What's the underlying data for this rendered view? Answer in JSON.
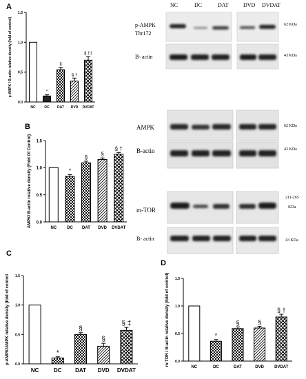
{
  "panels": {
    "a": "A",
    "b": "B",
    "c": "C",
    "d": "D"
  },
  "blots": {
    "lanes": [
      "NC",
      "DC",
      "DAT",
      "DVD",
      "DVDAT"
    ],
    "p_ampk_label": "p-AMPK",
    "thr_label": "Thr172",
    "beta_actin_label_1": "B- actin",
    "ampk_label": "AMPK",
    "beta_actin_label_2": "B-actin",
    "mtor_label": "m-TOR",
    "beta_actin_label_3": "B- actin",
    "kda_62_a": "62 KDa",
    "kda_43_a": "43 KDa",
    "kda_62_b": "62 KDa",
    "kda_43_b": "43 KDa",
    "kda_mtor_1": "211-265",
    "kda_mtor_2": "KDa",
    "kda_43_c": "43 KDa"
  },
  "chart_data": [
    {
      "id": "A",
      "type": "bar",
      "categories": [
        "NC",
        "DC",
        "DAT",
        "DVD",
        "DVDAT"
      ],
      "values": [
        1.0,
        0.1,
        0.54,
        0.35,
        0.7
      ],
      "errors": [
        0.0,
        0.02,
        0.04,
        0.05,
        0.06
      ],
      "annotations": [
        "",
        "*",
        "§",
        "§ †",
        "§ †‡"
      ],
      "ylabel": "p-AMPK / B-actin relative density (fold of control)",
      "ylim": [
        0,
        1.5
      ],
      "yticks": [
        0.0,
        0.5,
        1.0,
        1.5
      ],
      "patterns": [
        "white",
        "black",
        "checker",
        "diagonal",
        "cross"
      ]
    },
    {
      "id": "B",
      "type": "bar",
      "categories": [
        "NC",
        "DC",
        "DAT",
        "DVD",
        "DVDAT"
      ],
      "values": [
        1.0,
        0.84,
        1.09,
        1.15,
        1.25
      ],
      "errors": [
        0.0,
        0.03,
        0.03,
        0.03,
        0.03
      ],
      "annotations": [
        "",
        "*",
        "§",
        "§",
        "§ †"
      ],
      "ylabel": "AMPK/ B-actin relative density (Fold Of Control)",
      "ylim": [
        0,
        1.5
      ],
      "yticks": [
        0.0,
        0.5,
        1.0,
        1.5
      ],
      "patterns": [
        "white",
        "checker",
        "checker",
        "diagonal",
        "cross"
      ]
    },
    {
      "id": "C",
      "type": "bar",
      "categories": [
        "NC",
        "DC",
        "DAT",
        "DVD",
        "DVDAT"
      ],
      "values": [
        1.0,
        0.1,
        0.5,
        0.3,
        0.57
      ],
      "errors": [
        0.0,
        0.02,
        0.03,
        0.05,
        0.05
      ],
      "annotations": [
        "",
        "*",
        "§",
        "§",
        "§ ‡"
      ],
      "ylabel": "p-AMPK/AMPK relative density (fold of control",
      "ylim": [
        0,
        1.5
      ],
      "yticks": [
        0.0,
        0.5,
        1.0,
        1.5
      ],
      "patterns": [
        "white",
        "checker",
        "checker",
        "diagonal",
        "cross"
      ]
    },
    {
      "id": "D",
      "type": "bar",
      "categories": [
        "NC",
        "DC",
        "DAT",
        "DVD",
        "DVDAT"
      ],
      "values": [
        1.0,
        0.36,
        0.59,
        0.6,
        0.8
      ],
      "errors": [
        0.0,
        0.03,
        0.03,
        0.03,
        0.05
      ],
      "annotations": [
        "",
        "*",
        "§",
        "§",
        "§ †"
      ],
      "ylabel": "m-TOR / B-actin relative density (fold of control)",
      "ylim": [
        0,
        1.5
      ],
      "yticks": [
        0.0,
        0.5,
        1.0,
        1.5
      ],
      "patterns": [
        "white",
        "checker",
        "checker",
        "diagonal",
        "cross"
      ]
    }
  ]
}
